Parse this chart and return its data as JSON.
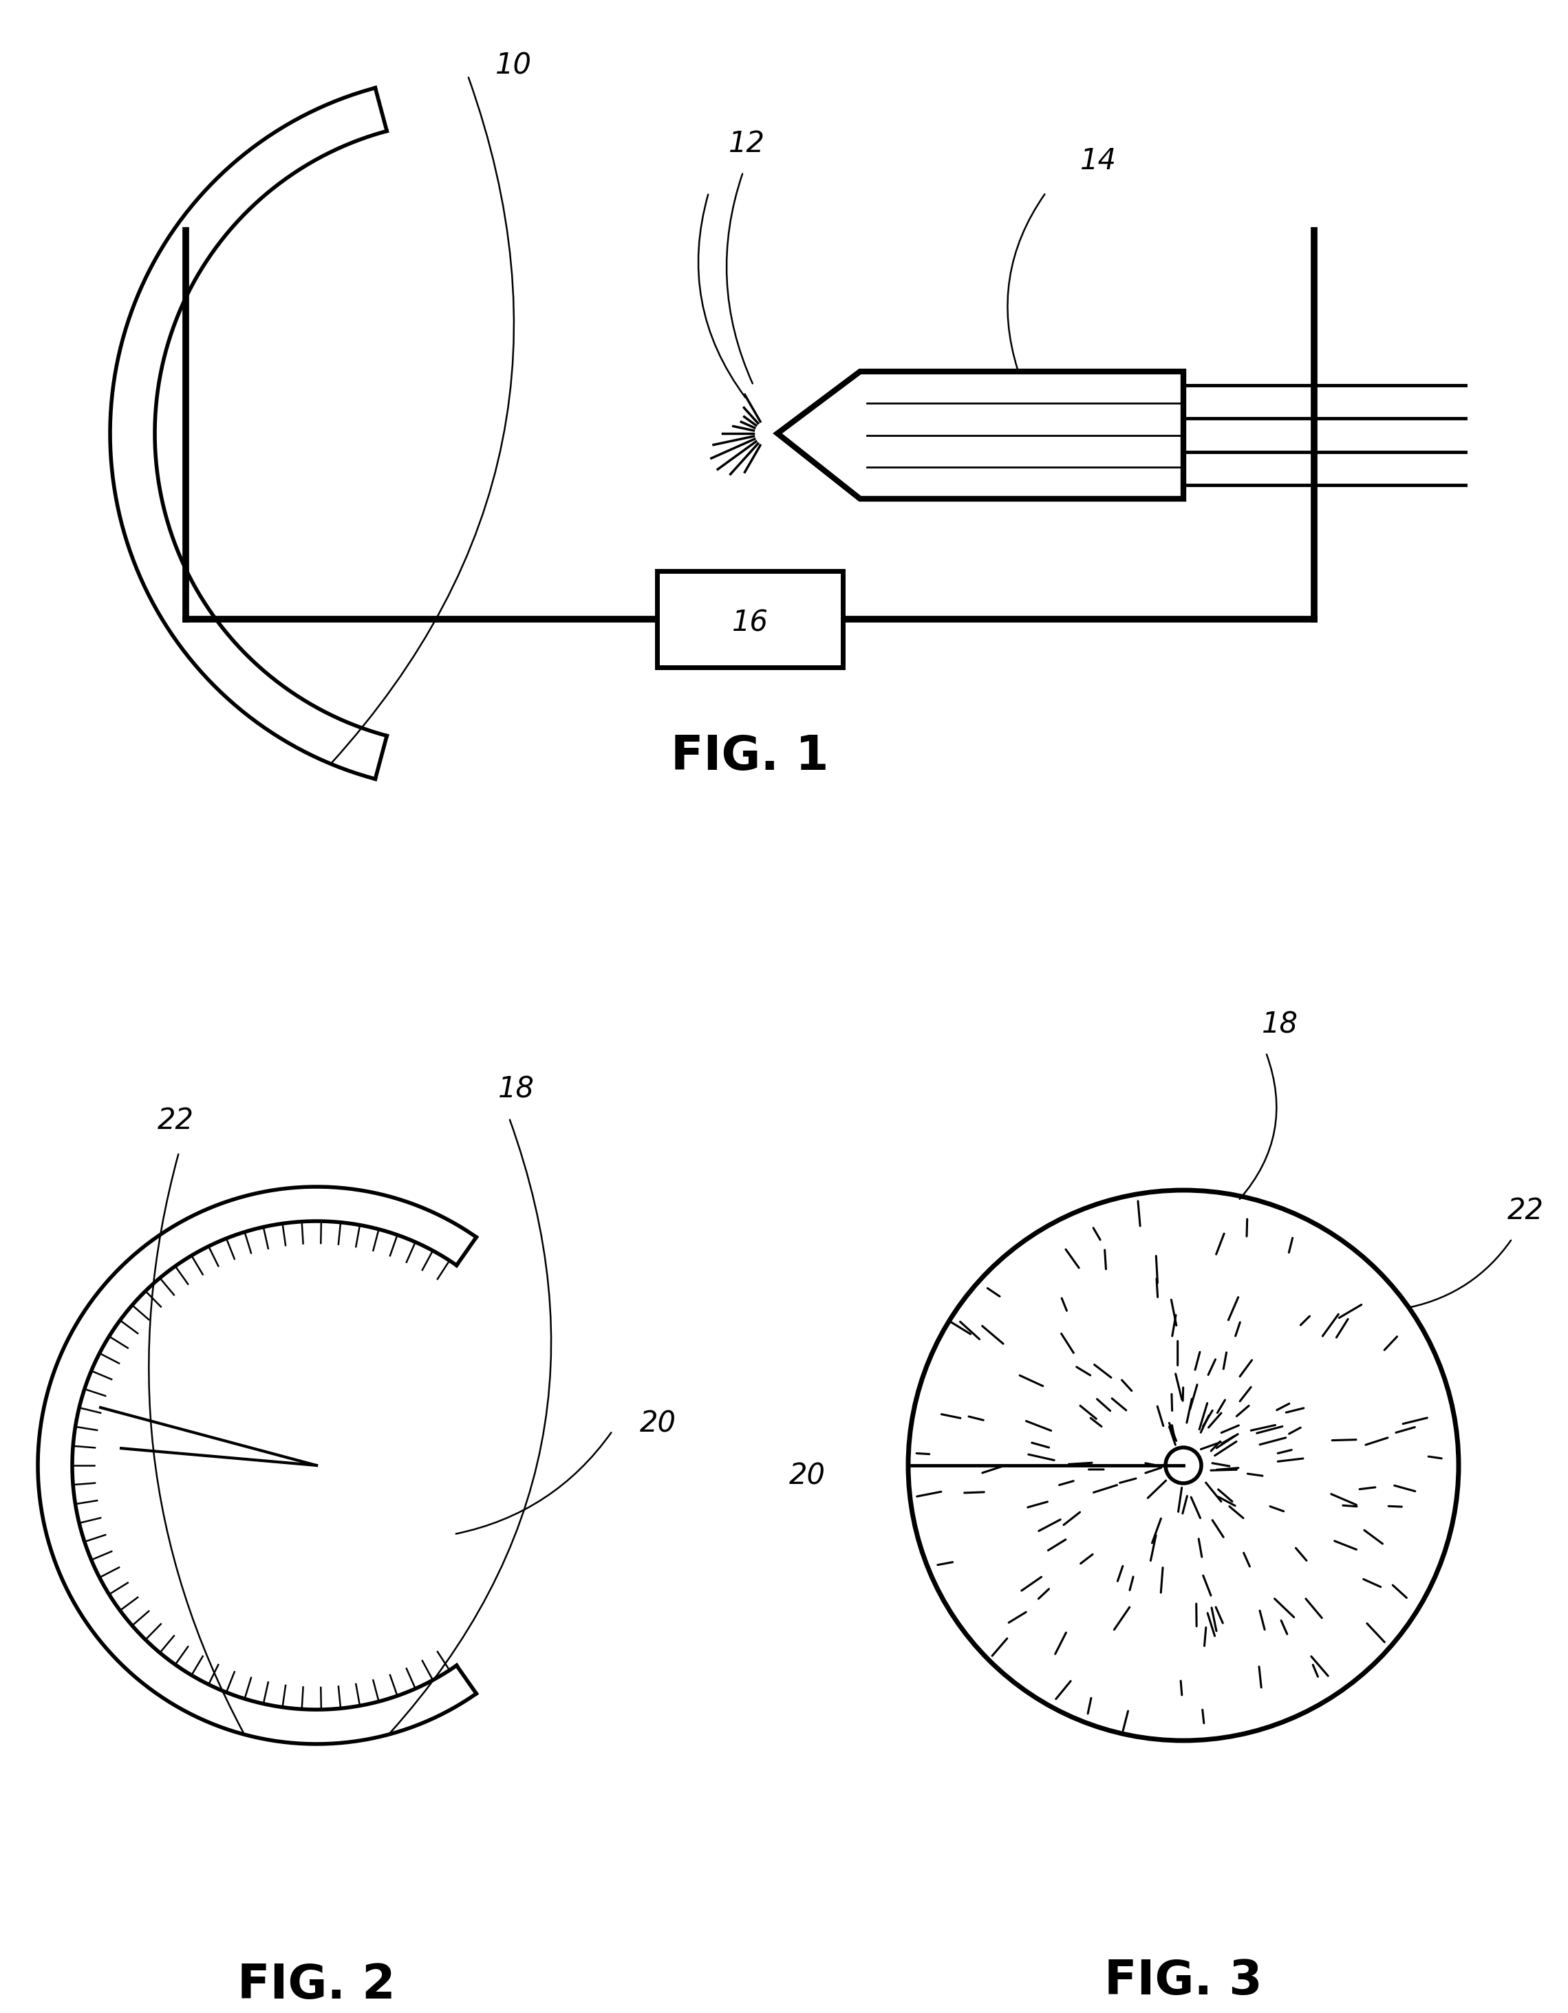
{
  "bg_color": "#ffffff",
  "line_color": "#000000",
  "fig1_label": "FIG. 1",
  "fig2_label": "FIG. 2",
  "fig3_label": "FIG. 3",
  "label_10": "10",
  "label_12": "12",
  "label_14": "14",
  "label_16": "16",
  "label_18": "18",
  "label_20": "20",
  "label_22": "22",
  "label_fontsize": 30,
  "fig_label_fontsize": 50,
  "lw_main": 4.0,
  "lw_thick": 7.0,
  "lw_thin": 2.0
}
